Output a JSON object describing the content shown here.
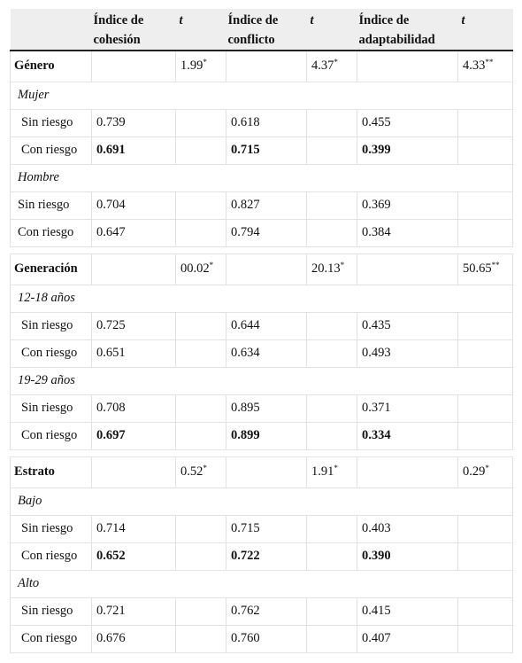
{
  "header": {
    "blank": "",
    "cohesion": "Índice de cohesión",
    "t1": "t",
    "conflict": "Índice de conflicto",
    "t2": "t",
    "adapt": "Índice de adaptabilidad",
    "t3": "t"
  },
  "groups": [
    {
      "label": "Género",
      "t": [
        {
          "v": "1.99",
          "s": "*"
        },
        {
          "v": "4.37",
          "s": "*"
        },
        {
          "v": "4.33",
          "s": "**"
        }
      ],
      "subs": [
        {
          "label": "Mujer",
          "rows": [
            {
              "label": "Sin riesgo",
              "vals": [
                "0.739",
                "0.618",
                "0.455"
              ],
              "bold": false
            },
            {
              "label": "Con riesgo",
              "vals": [
                "0.691",
                "0.715",
                "0.399"
              ],
              "bold": true
            }
          ]
        },
        {
          "label": "Hombre",
          "rows": [
            {
              "label": "Sin riesgo",
              "vals": [
                "0.704",
                "0.827",
                "0.369"
              ],
              "bold": false
            },
            {
              "label": "Con riesgo",
              "vals": [
                "0.647",
                "0.794",
                "0.384"
              ],
              "bold": false
            }
          ]
        }
      ]
    },
    {
      "label": "Generación",
      "t": [
        {
          "v": "00.02",
          "s": "*"
        },
        {
          "v": "20.13",
          "s": "*"
        },
        {
          "v": "50.65",
          "s": "**"
        }
      ],
      "subs": [
        {
          "label": "12-18 años",
          "rows": [
            {
              "label": "Sin riesgo",
              "vals": [
                "0.725",
                "0.644",
                "0.435"
              ],
              "bold": false
            },
            {
              "label": "Con riesgo",
              "vals": [
                "0.651",
                "0.634",
                "0.493"
              ],
              "bold": false
            }
          ]
        },
        {
          "label": "19-29 años",
          "rows": [
            {
              "label": "Sin riesgo",
              "vals": [
                "0.708",
                "0.895",
                "0.371"
              ],
              "bold": false
            },
            {
              "label": "Con riesgo",
              "vals": [
                "0.697",
                "0.899",
                "0.334"
              ],
              "bold": true
            }
          ]
        }
      ]
    },
    {
      "label": "Estrato",
      "t": [
        {
          "v": "0.52",
          "s": "*"
        },
        {
          "v": "1.91",
          "s": "*"
        },
        {
          "v": "0.29",
          "s": "*"
        }
      ],
      "subs": [
        {
          "label": "Bajo",
          "rows": [
            {
              "label": "Sin riesgo",
              "vals": [
                "0.714",
                "0.715",
                "0.403"
              ],
              "bold": false
            },
            {
              "label": "Con riesgo",
              "vals": [
                "0.652",
                "0.722",
                "0.390"
              ],
              "bold": true
            }
          ]
        },
        {
          "label": "Alto",
          "rows": [
            {
              "label": "Sin riesgo",
              "vals": [
                "0.721",
                "0.762",
                "0.415"
              ],
              "bold": false
            },
            {
              "label": "Con riesgo",
              "vals": [
                "0.676",
                "0.760",
                "0.407"
              ],
              "bold": false
            }
          ]
        }
      ]
    }
  ]
}
